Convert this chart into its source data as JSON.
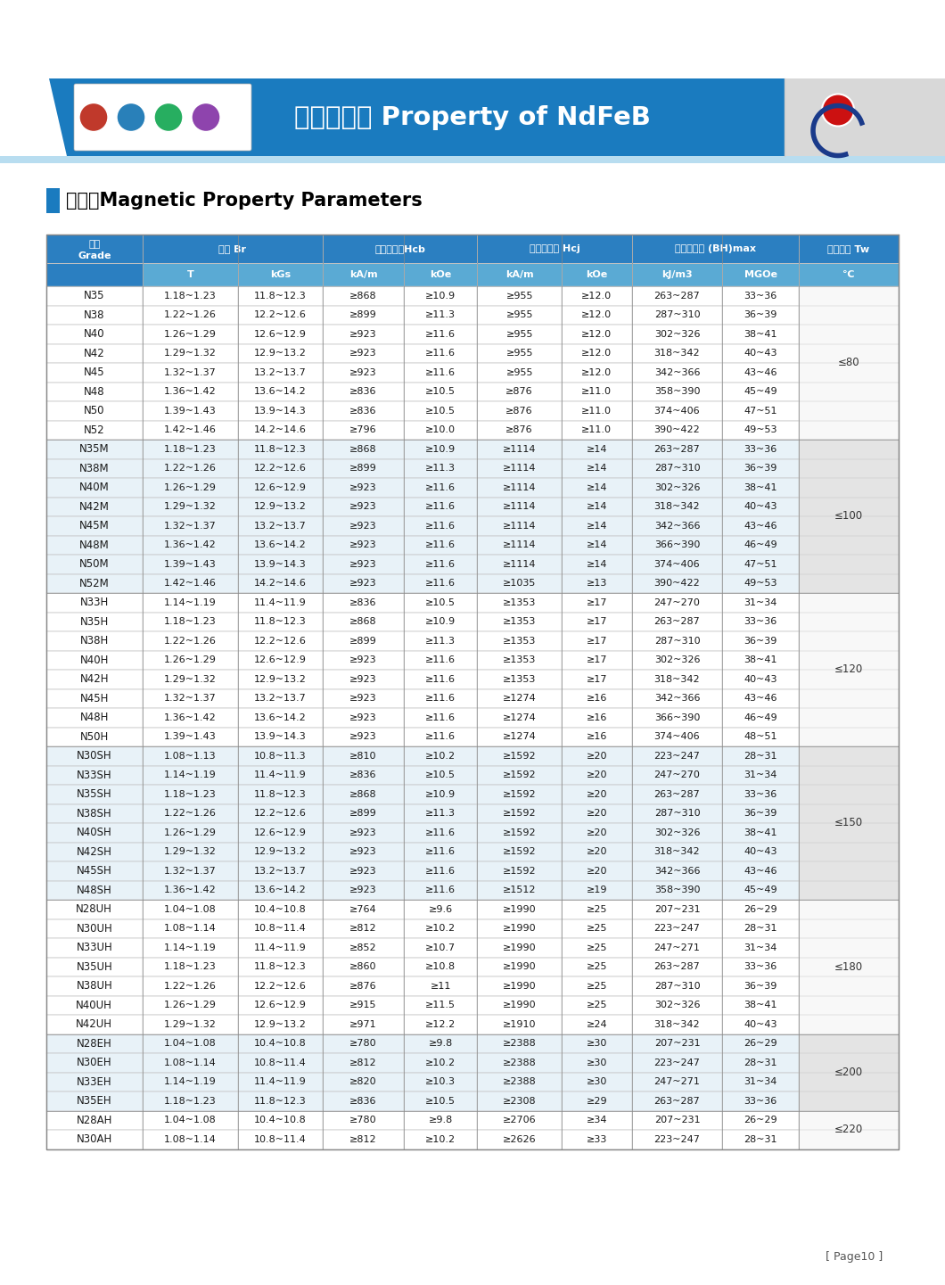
{
  "title_cn": "钕铁硼特性 Property of NdFeB",
  "section_title": "性能表Magnetic Property Parameters",
  "page_num": "[ Page10 ]",
  "header_bg": "#2b7fc1",
  "subheader_bg": "#5aaad4",
  "banner_blue": "#1a7bbf",
  "banner_light_blue": "#a8d4ee",
  "banner_gray": "#d8d8d8",
  "row_alt_color": "#e8f2f8",
  "row_white": "#ffffff",
  "tw_alt1": "#e0e0e0",
  "tw_alt2": "#f5f5f5",
  "rows": [
    [
      "N35",
      "1.18~1.23",
      "11.8~12.3",
      "≥868",
      "≥10.9",
      "≥955",
      "≥12.0",
      "263~287",
      "33~36"
    ],
    [
      "N38",
      "1.22~1.26",
      "12.2~12.6",
      "≥899",
      "≥11.3",
      "≥955",
      "≥12.0",
      "287~310",
      "36~39"
    ],
    [
      "N40",
      "1.26~1.29",
      "12.6~12.9",
      "≥923",
      "≥11.6",
      "≥955",
      "≥12.0",
      "302~326",
      "38~41"
    ],
    [
      "N42",
      "1.29~1.32",
      "12.9~13.2",
      "≥923",
      "≥11.6",
      "≥955",
      "≥12.0",
      "318~342",
      "40~43"
    ],
    [
      "N45",
      "1.32~1.37",
      "13.2~13.7",
      "≥923",
      "≥11.6",
      "≥955",
      "≥12.0",
      "342~366",
      "43~46"
    ],
    [
      "N48",
      "1.36~1.42",
      "13.6~14.2",
      "≥836",
      "≥10.5",
      "≥876",
      "≥11.0",
      "358~390",
      "45~49"
    ],
    [
      "N50",
      "1.39~1.43",
      "13.9~14.3",
      "≥836",
      "≥10.5",
      "≥876",
      "≥11.0",
      "374~406",
      "47~51"
    ],
    [
      "N52",
      "1.42~1.46",
      "14.2~14.6",
      "≥796",
      "≥10.0",
      "≥876",
      "≥11.0",
      "390~422",
      "49~53"
    ],
    [
      "N35M",
      "1.18~1.23",
      "11.8~12.3",
      "≥868",
      "≥10.9",
      "≥1114",
      "≥14",
      "263~287",
      "33~36"
    ],
    [
      "N38M",
      "1.22~1.26",
      "12.2~12.6",
      "≥899",
      "≥11.3",
      "≥1114",
      "≥14",
      "287~310",
      "36~39"
    ],
    [
      "N40M",
      "1.26~1.29",
      "12.6~12.9",
      "≥923",
      "≥11.6",
      "≥1114",
      "≥14",
      "302~326",
      "38~41"
    ],
    [
      "N42M",
      "1.29~1.32",
      "12.9~13.2",
      "≥923",
      "≥11.6",
      "≥1114",
      "≥14",
      "318~342",
      "40~43"
    ],
    [
      "N45M",
      "1.32~1.37",
      "13.2~13.7",
      "≥923",
      "≥11.6",
      "≥1114",
      "≥14",
      "342~366",
      "43~46"
    ],
    [
      "N48M",
      "1.36~1.42",
      "13.6~14.2",
      "≥923",
      "≥11.6",
      "≥1114",
      "≥14",
      "366~390",
      "46~49"
    ],
    [
      "N50M",
      "1.39~1.43",
      "13.9~14.3",
      "≥923",
      "≥11.6",
      "≥1114",
      "≥14",
      "374~406",
      "47~51"
    ],
    [
      "N52M",
      "1.42~1.46",
      "14.2~14.6",
      "≥923",
      "≥11.6",
      "≥1035",
      "≥13",
      "390~422",
      "49~53"
    ],
    [
      "N33H",
      "1.14~1.19",
      "11.4~11.9",
      "≥836",
      "≥10.5",
      "≥1353",
      "≥17",
      "247~270",
      "31~34"
    ],
    [
      "N35H",
      "1.18~1.23",
      "11.8~12.3",
      "≥868",
      "≥10.9",
      "≥1353",
      "≥17",
      "263~287",
      "33~36"
    ],
    [
      "N38H",
      "1.22~1.26",
      "12.2~12.6",
      "≥899",
      "≥11.3",
      "≥1353",
      "≥17",
      "287~310",
      "36~39"
    ],
    [
      "N40H",
      "1.26~1.29",
      "12.6~12.9",
      "≥923",
      "≥11.6",
      "≥1353",
      "≥17",
      "302~326",
      "38~41"
    ],
    [
      "N42H",
      "1.29~1.32",
      "12.9~13.2",
      "≥923",
      "≥11.6",
      "≥1353",
      "≥17",
      "318~342",
      "40~43"
    ],
    [
      "N45H",
      "1.32~1.37",
      "13.2~13.7",
      "≥923",
      "≥11.6",
      "≥1274",
      "≥16",
      "342~366",
      "43~46"
    ],
    [
      "N48H",
      "1.36~1.42",
      "13.6~14.2",
      "≥923",
      "≥11.6",
      "≥1274",
      "≥16",
      "366~390",
      "46~49"
    ],
    [
      "N50H",
      "1.39~1.43",
      "13.9~14.3",
      "≥923",
      "≥11.6",
      "≥1274",
      "≥16",
      "374~406",
      "48~51"
    ],
    [
      "N30SH",
      "1.08~1.13",
      "10.8~11.3",
      "≥810",
      "≥10.2",
      "≥1592",
      "≥20",
      "223~247",
      "28~31"
    ],
    [
      "N33SH",
      "1.14~1.19",
      "11.4~11.9",
      "≥836",
      "≥10.5",
      "≥1592",
      "≥20",
      "247~270",
      "31~34"
    ],
    [
      "N35SH",
      "1.18~1.23",
      "11.8~12.3",
      "≥868",
      "≥10.9",
      "≥1592",
      "≥20",
      "263~287",
      "33~36"
    ],
    [
      "N38SH",
      "1.22~1.26",
      "12.2~12.6",
      "≥899",
      "≥11.3",
      "≥1592",
      "≥20",
      "287~310",
      "36~39"
    ],
    [
      "N40SH",
      "1.26~1.29",
      "12.6~12.9",
      "≥923",
      "≥11.6",
      "≥1592",
      "≥20",
      "302~326",
      "38~41"
    ],
    [
      "N42SH",
      "1.29~1.32",
      "12.9~13.2",
      "≥923",
      "≥11.6",
      "≥1592",
      "≥20",
      "318~342",
      "40~43"
    ],
    [
      "N45SH",
      "1.32~1.37",
      "13.2~13.7",
      "≥923",
      "≥11.6",
      "≥1592",
      "≥20",
      "342~366",
      "43~46"
    ],
    [
      "N48SH",
      "1.36~1.42",
      "13.6~14.2",
      "≥923",
      "≥11.6",
      "≥1512",
      "≥19",
      "358~390",
      "45~49"
    ],
    [
      "N28UH",
      "1.04~1.08",
      "10.4~10.8",
      "≥764",
      "≥9.6",
      "≥1990",
      "≥25",
      "207~231",
      "26~29"
    ],
    [
      "N30UH",
      "1.08~1.14",
      "10.8~11.4",
      "≥812",
      "≥10.2",
      "≥1990",
      "≥25",
      "223~247",
      "28~31"
    ],
    [
      "N33UH",
      "1.14~1.19",
      "11.4~11.9",
      "≥852",
      "≥10.7",
      "≥1990",
      "≥25",
      "247~271",
      "31~34"
    ],
    [
      "N35UH",
      "1.18~1.23",
      "11.8~12.3",
      "≥860",
      "≥10.8",
      "≥1990",
      "≥25",
      "263~287",
      "33~36"
    ],
    [
      "N38UH",
      "1.22~1.26",
      "12.2~12.6",
      "≥876",
      "≥11",
      "≥1990",
      "≥25",
      "287~310",
      "36~39"
    ],
    [
      "N40UH",
      "1.26~1.29",
      "12.6~12.9",
      "≥915",
      "≥11.5",
      "≥1990",
      "≥25",
      "302~326",
      "38~41"
    ],
    [
      "N42UH",
      "1.29~1.32",
      "12.9~13.2",
      "≥971",
      "≥12.2",
      "≥1910",
      "≥24",
      "318~342",
      "40~43"
    ],
    [
      "N28EH",
      "1.04~1.08",
      "10.4~10.8",
      "≥780",
      "≥9.8",
      "≥2388",
      "≥30",
      "207~231",
      "26~29"
    ],
    [
      "N30EH",
      "1.08~1.14",
      "10.8~11.4",
      "≥812",
      "≥10.2",
      "≥2388",
      "≥30",
      "223~247",
      "28~31"
    ],
    [
      "N33EH",
      "1.14~1.19",
      "11.4~11.9",
      "≥820",
      "≥10.3",
      "≥2388",
      "≥30",
      "247~271",
      "31~34"
    ],
    [
      "N35EH",
      "1.18~1.23",
      "11.8~12.3",
      "≥836",
      "≥10.5",
      "≥2308",
      "≥29",
      "263~287",
      "33~36"
    ],
    [
      "N28AH",
      "1.04~1.08",
      "10.4~10.8",
      "≥780",
      "≥9.8",
      "≥2706",
      "≥34",
      "207~231",
      "26~29"
    ],
    [
      "N30AH",
      "1.08~1.14",
      "10.8~11.4",
      "≥812",
      "≥10.2",
      "≥2626",
      "≥33",
      "223~247",
      "28~31"
    ]
  ],
  "groups": [
    {
      "label": "≤80",
      "start": 0,
      "end": 7
    },
    {
      "label": "≤100",
      "start": 8,
      "end": 15
    },
    {
      "label": "≤120",
      "start": 16,
      "end": 23
    },
    {
      "label": "≤150",
      "start": 24,
      "end": 31
    },
    {
      "label": "≤180",
      "start": 32,
      "end": 38
    },
    {
      "label": "≤200",
      "start": 39,
      "end": 42
    },
    {
      "label": "≤220",
      "start": 43,
      "end": 44
    }
  ]
}
